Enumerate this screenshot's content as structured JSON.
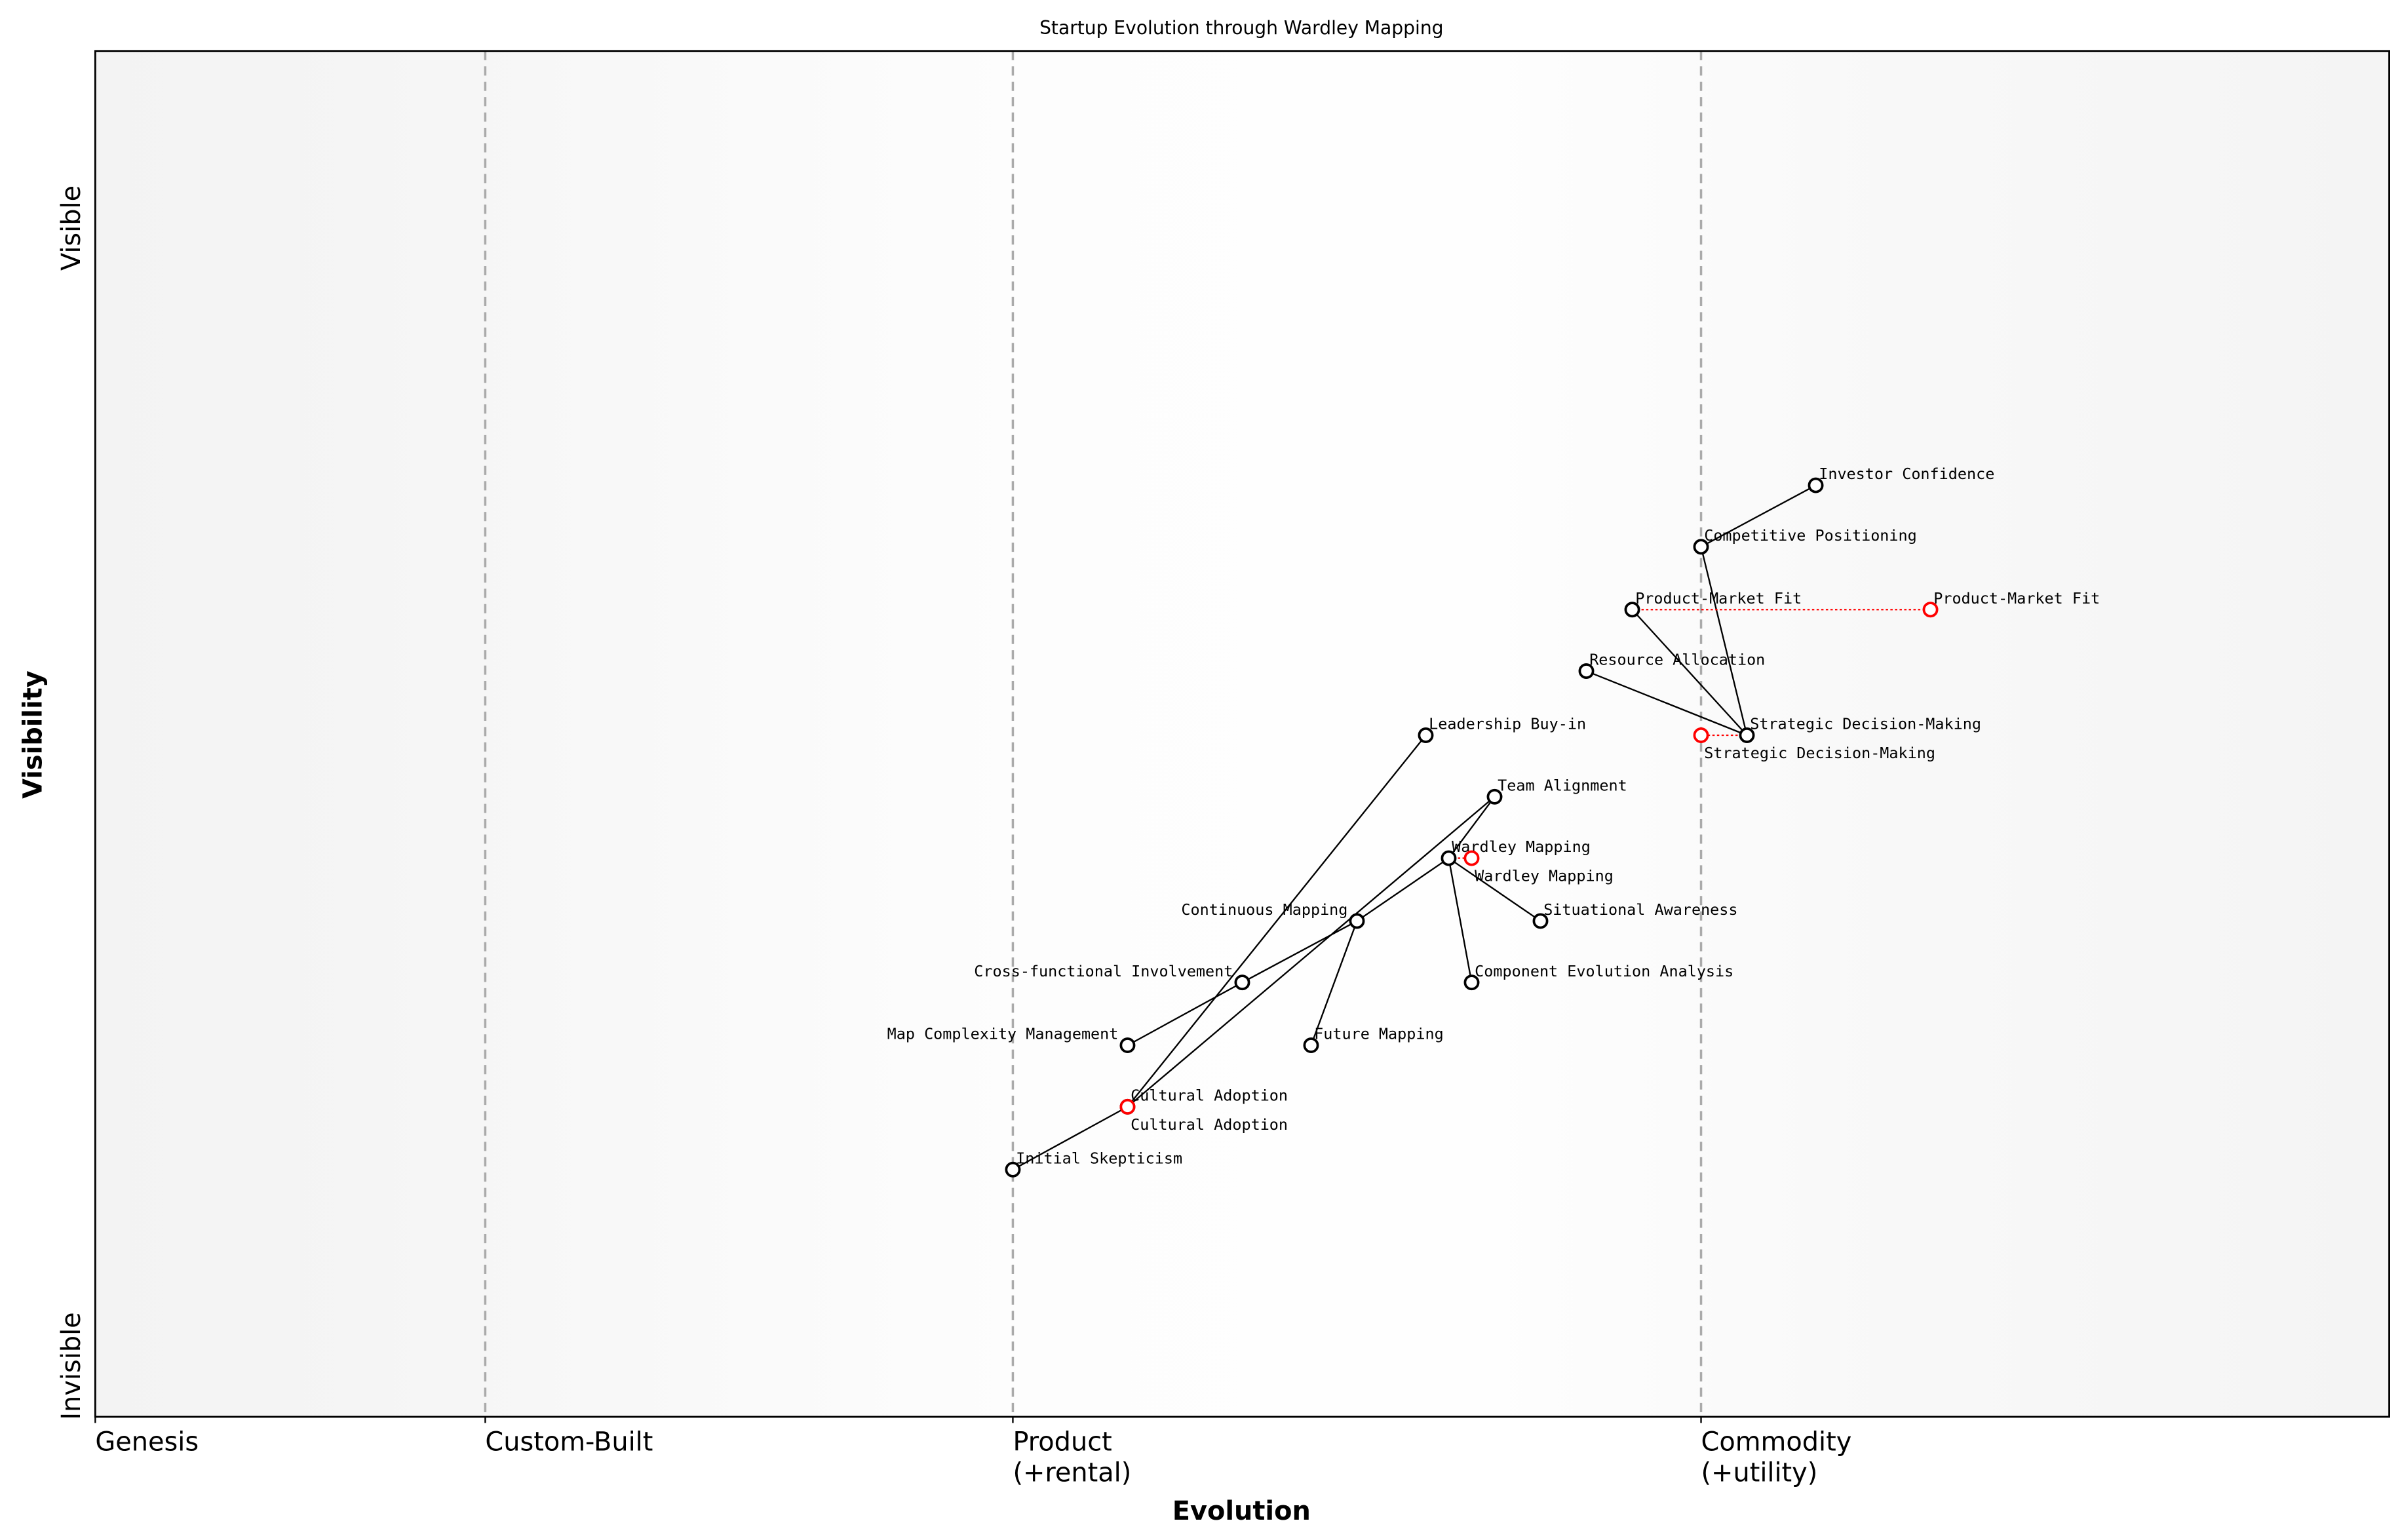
{
  "chart_data": {
    "type": "scatter",
    "title": "Startup Evolution through Wardley Mapping",
    "xlabel": "Evolution",
    "ylabel": "Visibility",
    "xlim": [
      0,
      1
    ],
    "ylim": [
      0,
      1
    ],
    "y_ends": {
      "top": "Visible",
      "bottom": "Invisible"
    },
    "stages": [
      {
        "x": 0,
        "label": "Genesis"
      },
      {
        "x": 0.17,
        "label": "Custom-Built"
      },
      {
        "x": 0.4,
        "label": "Product",
        "sub": "(+rental)"
      },
      {
        "x": 0.7,
        "label": "Commodity",
        "sub": "(+utility)"
      }
    ],
    "components": [
      {
        "name": "Initial Skepticism",
        "x": 0.4,
        "y": 0.181
      },
      {
        "name": "Cultural Adoption",
        "x": 0.45,
        "y": 0.227
      },
      {
        "name": "Map Complexity Management",
        "x": 0.45,
        "y": 0.272
      },
      {
        "name": "Future Mapping",
        "x": 0.53,
        "y": 0.272
      },
      {
        "name": "Cross-functional Involvement",
        "x": 0.5,
        "y": 0.318
      },
      {
        "name": "Component Evolution Analysis",
        "x": 0.6,
        "y": 0.318
      },
      {
        "name": "Continuous Mapping",
        "x": 0.55,
        "y": 0.363
      },
      {
        "name": "Situational Awareness",
        "x": 0.63,
        "y": 0.363
      },
      {
        "name": "Wardley Mapping",
        "x": 0.59,
        "y": 0.409
      },
      {
        "name": "Team Alignment",
        "x": 0.61,
        "y": 0.454
      },
      {
        "name": "Leadership Buy-in",
        "x": 0.58,
        "y": 0.499
      },
      {
        "name": "Strategic Decision-Making",
        "x": 0.72,
        "y": 0.499
      },
      {
        "name": "Resource Allocation",
        "x": 0.65,
        "y": 0.546
      },
      {
        "name": "Product-Market Fit",
        "x": 0.67,
        "y": 0.591
      },
      {
        "name": "Competitive Positioning",
        "x": 0.7,
        "y": 0.637
      },
      {
        "name": "Investor Confidence",
        "x": 0.75,
        "y": 0.682
      }
    ],
    "links": [
      [
        "Initial Skepticism",
        "Cultural Adoption"
      ],
      [
        "Cultural Adoption",
        "Leadership Buy-in"
      ],
      [
        "Cultural Adoption",
        "Team Alignment"
      ],
      [
        "Map Complexity Management",
        "Cross-functional Involvement"
      ],
      [
        "Cross-functional Involvement",
        "Continuous Mapping"
      ],
      [
        "Continuous Mapping",
        "Future Mapping"
      ],
      [
        "Continuous Mapping",
        "Wardley Mapping"
      ],
      [
        "Wardley Mapping",
        "Team Alignment"
      ],
      [
        "Wardley Mapping",
        "Situational Awareness"
      ],
      [
        "Wardley Mapping",
        "Component Evolution Analysis"
      ],
      [
        "Strategic Decision-Making",
        "Resource Allocation"
      ],
      [
        "Strategic Decision-Making",
        "Product-Market Fit"
      ],
      [
        "Strategic Decision-Making",
        "Competitive Positioning"
      ],
      [
        "Competitive Positioning",
        "Investor Confidence"
      ]
    ],
    "evolutions": [
      {
        "name": "Cultural Adoption",
        "from": 0.45,
        "to": 0.45,
        "y": 0.227
      },
      {
        "name": "Wardley Mapping",
        "from": 0.59,
        "to": 0.6,
        "y": 0.409
      },
      {
        "name": "Strategic Decision-Making",
        "from": 0.72,
        "to": 0.7,
        "y": 0.499
      },
      {
        "name": "Product-Market Fit",
        "from": 0.67,
        "to": 0.8,
        "y": 0.591
      }
    ],
    "colors": {
      "component": "#000000",
      "evolved": "#ff0000",
      "stage_line": "#aaaaaa"
    }
  }
}
